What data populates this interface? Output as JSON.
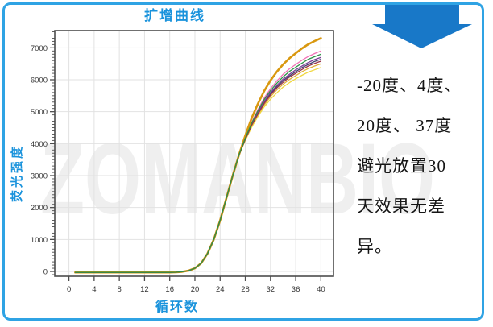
{
  "title": "扩增曲线",
  "watermark": "ZOMANBIO",
  "panel": {
    "arrow_icon": "down-block-arrow",
    "lines": [
      "-20度、4度、",
      "20度、 37度",
      "避光放置30",
      "天效果无差",
      "异。"
    ],
    "full_text": "-20度、4度、20度、37度避光放置30天效果无差异。"
  },
  "colors": {
    "border_blue": "#2FA3E4",
    "arrow_blue": "#1878C8",
    "label_blue": "#1A93DC",
    "frame_gray": "#4D4D4D",
    "grid_gray": "#E2E2E2",
    "tick_label": "#333333",
    "watermark_gray": "#EFEFEF"
  },
  "chart_data": {
    "type": "line",
    "title": "扩增曲线",
    "xlabel": "循环数",
    "ylabel": "荧光强度",
    "xlim": [
      -2.25,
      42
    ],
    "ylim": [
      -151,
      7538
    ],
    "x_ticks": [
      0,
      4,
      8,
      12,
      16,
      20,
      24,
      28,
      32,
      36,
      40
    ],
    "y_ticks": [
      0,
      1000,
      2000,
      3000,
      4000,
      5000,
      6000,
      7000
    ],
    "y_minor_step": 100,
    "grid": true,
    "legend": "none",
    "x": [
      1,
      2,
      3,
      4,
      5,
      6,
      7,
      8,
      9,
      10,
      11,
      12,
      13,
      14,
      15,
      16,
      17,
      18,
      19,
      20,
      21,
      22,
      23,
      24,
      25,
      26,
      27,
      28,
      29,
      30,
      31,
      32,
      33,
      34,
      35,
      36,
      37,
      38,
      39,
      40
    ],
    "series": [
      {
        "name": "series-pink",
        "color": "#F272B6",
        "width": 1.3,
        "values": [
          -30,
          -30,
          -30,
          -30,
          -30,
          -30,
          -30,
          -30,
          -30,
          -30,
          -30,
          -30,
          -30,
          -30,
          -30,
          -30,
          -25,
          -10,
          25,
          100,
          260,
          560,
          1000,
          1600,
          2300,
          3000,
          3650,
          4180,
          4670,
          5070,
          5430,
          5720,
          5960,
          6170,
          6340,
          6480,
          6610,
          6730,
          6820,
          6900
        ]
      },
      {
        "name": "series-navy",
        "color": "#42426E",
        "width": 1.3,
        "values": [
          -30,
          -30,
          -30,
          -30,
          -30,
          -30,
          -30,
          -30,
          -30,
          -30,
          -30,
          -30,
          -30,
          -30,
          -30,
          -30,
          -25,
          -10,
          25,
          100,
          260,
          560,
          1000,
          1600,
          2300,
          3000,
          3650,
          4140,
          4590,
          4960,
          5290,
          5560,
          5780,
          5970,
          6120,
          6250,
          6380,
          6480,
          6570,
          6640
        ]
      },
      {
        "name": "series-purple",
        "color": "#7C3F97",
        "width": 1.3,
        "values": [
          -30,
          -30,
          -30,
          -30,
          -30,
          -30,
          -30,
          -30,
          -30,
          -30,
          -30,
          -30,
          -30,
          -30,
          -30,
          -30,
          -25,
          -10,
          25,
          100,
          260,
          560,
          1000,
          1600,
          2300,
          3000,
          3650,
          4150,
          4610,
          4990,
          5320,
          5600,
          5820,
          6020,
          6170,
          6310,
          6430,
          6540,
          6630,
          6700
        ]
      },
      {
        "name": "series-khaki",
        "color": "#DFAF3C",
        "width": 1.3,
        "values": [
          -30,
          -30,
          -30,
          -30,
          -30,
          -30,
          -30,
          -30,
          -30,
          -30,
          -30,
          -30,
          -30,
          -30,
          -30,
          -30,
          -25,
          -10,
          25,
          100,
          260,
          560,
          1000,
          1600,
          2300,
          3000,
          3650,
          4120,
          4550,
          4900,
          5210,
          5470,
          5680,
          5860,
          6010,
          6130,
          6250,
          6350,
          6430,
          6500
        ]
      },
      {
        "name": "series-yellow",
        "color": "#F0D73F",
        "width": 1.3,
        "values": [
          -30,
          -30,
          -30,
          -30,
          -30,
          -30,
          -30,
          -30,
          -30,
          -30,
          -30,
          -30,
          -30,
          -30,
          -30,
          -30,
          -25,
          -10,
          25,
          100,
          260,
          560,
          1000,
          1600,
          2300,
          3000,
          3650,
          4100,
          4510,
          4850,
          5150,
          5390,
          5590,
          5770,
          5910,
          6030,
          6140,
          6240,
          6310,
          6380
        ]
      },
      {
        "name": "series-gold",
        "color": "#D9980F",
        "width": 2.6,
        "values": [
          -30,
          -30,
          -30,
          -30,
          -30,
          -30,
          -30,
          -30,
          -30,
          -30,
          -30,
          -30,
          -30,
          -30,
          -30,
          -30,
          -25,
          -10,
          25,
          100,
          260,
          560,
          1000,
          1600,
          2300,
          3000,
          3650,
          4250,
          4800,
          5250,
          5650,
          5980,
          6250,
          6480,
          6670,
          6830,
          6980,
          7110,
          7210,
          7300
        ]
      },
      {
        "name": "series-maroon",
        "color": "#97344A",
        "width": 1.3,
        "values": [
          -30,
          -30,
          -30,
          -30,
          -30,
          -30,
          -30,
          -30,
          -30,
          -30,
          -30,
          -30,
          -30,
          -30,
          -30,
          -30,
          -25,
          -10,
          25,
          100,
          260,
          560,
          1000,
          1600,
          2300,
          3000,
          3650,
          4130,
          4570,
          4930,
          5260,
          5520,
          5740,
          5920,
          6080,
          6200,
          6320,
          6430,
          6510,
          6580
        ]
      },
      {
        "name": "series-green",
        "color": "#2E9147",
        "width": 1.3,
        "values": [
          -30,
          -30,
          -30,
          -30,
          -30,
          -30,
          -30,
          -30,
          -30,
          -30,
          -30,
          -30,
          -30,
          -30,
          -30,
          -30,
          -25,
          -10,
          25,
          100,
          260,
          560,
          1000,
          1600,
          2300,
          3000,
          3650,
          4170,
          4640,
          5030,
          5380,
          5660,
          5890,
          6090,
          6260,
          6390,
          6520,
          6640,
          6720,
          6800
        ]
      }
    ]
  }
}
